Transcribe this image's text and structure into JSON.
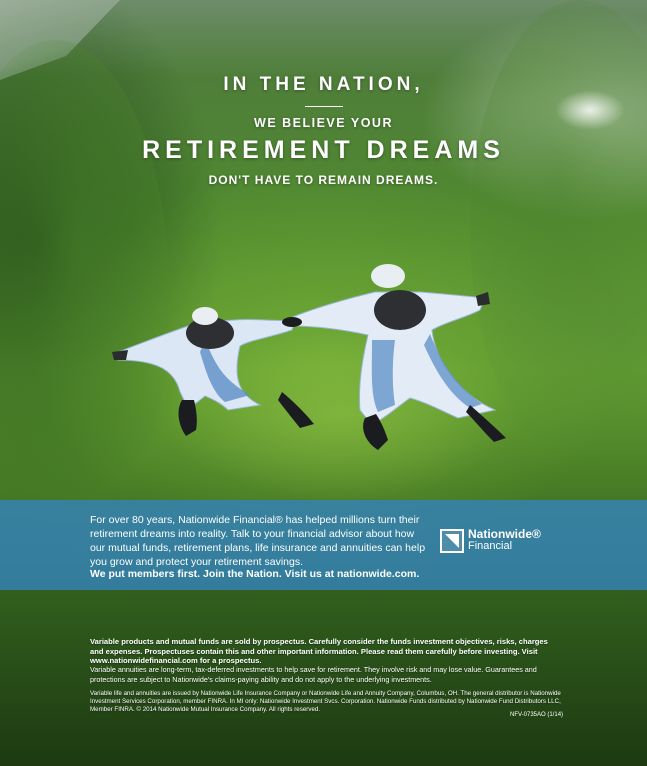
{
  "headline": {
    "line1": "IN THE NATION,",
    "line2": "WE BELIEVE YOUR",
    "line3": "RETIREMENT DREAMS",
    "line4": "DON'T HAVE TO REMAIN DREAMS."
  },
  "band": {
    "body": "For over 80 years, Nationwide Financial® has helped millions turn their retirement dreams into reality. Talk to your financial advisor about how our mutual funds, retirement plans, life insurance and annuities can help you grow and protect your retirement savings.",
    "cta": "We put members first. Join the Nation. Visit us at nationwide.com.",
    "logo_name": "Nationwide®",
    "logo_sub": "Financial"
  },
  "legal": {
    "p1": "Variable products and mutual funds are sold by prospectus. Carefully consider the funds investment objectives, risks, charges and expenses. Prospectuses contain this and other important information. Please read them carefully before investing. Visit www.nationwidefinancial.com for a prospectus.",
    "p2": "Variable annuities are long-term, tax-deferred investments to help save for retirement. They involve risk and may lose value. Guarantees and protections are subject to Nationwide's claims-paying ability and do not apply to the underlying investments.",
    "p3": "Variable life and annuities are issued by Nationwide Life Insurance Company or Nationwide Life and Annuity Company, Columbus, OH. The general distributor is Nationwide Investment Services Corporation, member FINRA. In MI only: Nationwide Investment Svcs. Corporation. Nationwide Funds distributed by Nationwide Fund Distributors LLC, Member FINRA. © 2014 Nationwide Mutual Insurance Company. All rights reserved.",
    "code": "NFV-0735AO (1/14)"
  },
  "colors": {
    "band": "#3482b9",
    "text": "#ffffff"
  },
  "icons": {
    "logo": "nationwide-logo-icon"
  }
}
